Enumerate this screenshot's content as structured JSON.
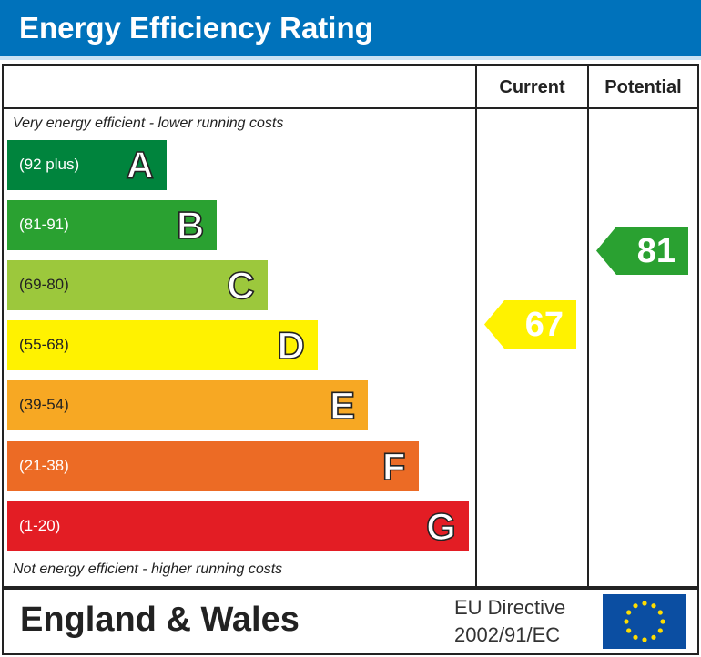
{
  "title": "Energy Efficiency Rating",
  "columns": {
    "current": "Current",
    "potential": "Potential"
  },
  "notes": {
    "top": "Very energy efficient - lower running costs",
    "bottom": "Not energy efficient - higher running costs"
  },
  "footer": {
    "region": "England & Wales",
    "directive_line1": "EU Directive",
    "directive_line2": "2002/91/EC"
  },
  "chart_data": {
    "type": "bar",
    "bands": [
      {
        "letter": "A",
        "range": "(92 plus)",
        "color": "#00843d"
      },
      {
        "letter": "B",
        "range": "(81-91)",
        "color": "#2aa131"
      },
      {
        "letter": "C",
        "range": "(69-80)",
        "color": "#9cc83c"
      },
      {
        "letter": "D",
        "range": "(55-68)",
        "color": "#fff200"
      },
      {
        "letter": "E",
        "range": "(39-54)",
        "color": "#f7a823"
      },
      {
        "letter": "F",
        "range": "(21-38)",
        "color": "#ec6b25"
      },
      {
        "letter": "G",
        "range": "(1-20)",
        "color": "#e31d24"
      }
    ],
    "current": {
      "value": "67",
      "band": "D",
      "color": "#fff200"
    },
    "potential": {
      "value": "81",
      "band": "B",
      "color": "#2aa131"
    }
  }
}
